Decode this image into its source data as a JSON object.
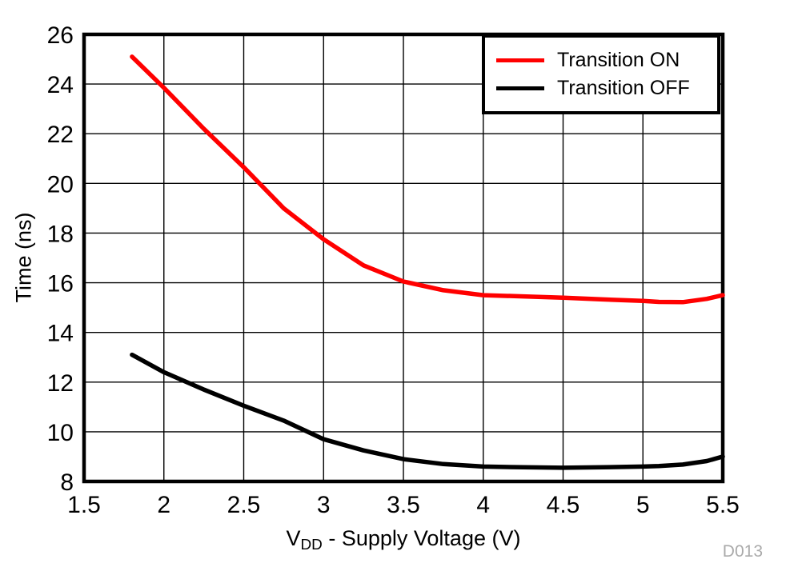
{
  "figure": {
    "watermark": "D013",
    "background": "#ffffff",
    "colors": {
      "accent_red": "#ff0000",
      "line_black": "#000000",
      "grid": "#000000",
      "watermark_gray": "#aaaaaa"
    }
  },
  "chart_data": {
    "type": "line",
    "title": "",
    "xlabel": "VDD - Supply Voltage (V)",
    "xlabel_main": "V",
    "xlabel_sub": "DD",
    "xlabel_rest": " - Supply Voltage (V)",
    "ylabel": "Time (ns)",
    "xlim": [
      1.5,
      5.5
    ],
    "ylim": [
      8,
      26
    ],
    "grid": true,
    "legend_position": "top-right",
    "xticks": [
      1.5,
      2,
      2.5,
      3,
      3.5,
      4,
      4.5,
      5,
      5.5
    ],
    "xtick_labels": [
      "1.5",
      "2",
      "2.5",
      "3",
      "3.5",
      "4",
      "4.5",
      "5",
      "5.5"
    ],
    "yticks": [
      8,
      10,
      12,
      14,
      16,
      18,
      20,
      22,
      24,
      26
    ],
    "ytick_labels": [
      "8",
      "10",
      "12",
      "14",
      "16",
      "18",
      "20",
      "22",
      "24",
      "26"
    ],
    "x": [
      1.8,
      2.0,
      2.25,
      2.5,
      2.75,
      3.0,
      3.25,
      3.5,
      3.75,
      4.0,
      4.25,
      4.5,
      4.75,
      5.0,
      5.1,
      5.25,
      5.4,
      5.5
    ],
    "series": [
      {
        "name": "Transition ON",
        "color": "#ff0000",
        "values": [
          25.1,
          23.85,
          22.2,
          20.65,
          19.0,
          17.75,
          16.7,
          16.05,
          15.7,
          15.5,
          15.45,
          15.4,
          15.33,
          15.27,
          15.23,
          15.22,
          15.35,
          15.5
        ]
      },
      {
        "name": "Transition OFF",
        "color": "#000000",
        "values": [
          13.1,
          12.4,
          11.7,
          11.05,
          10.45,
          9.7,
          9.25,
          8.9,
          8.7,
          8.6,
          8.57,
          8.55,
          8.57,
          8.6,
          8.62,
          8.68,
          8.82,
          9.0
        ]
      }
    ]
  }
}
